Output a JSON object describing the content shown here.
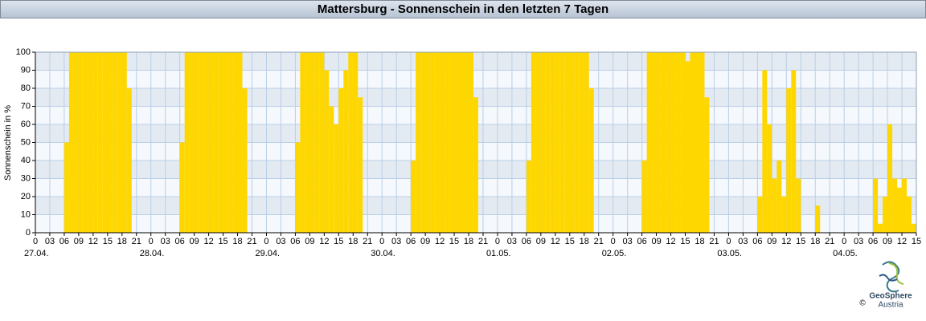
{
  "chart_data": {
    "type": "bar",
    "title": "Mattersburg - Sonnenschein in den letzten 7 Tagen",
    "ylabel": "Sonnenschein in %",
    "color": "#ffd700",
    "grid": true,
    "ylim": [
      0,
      100
    ],
    "yticks": [
      0,
      10,
      20,
      30,
      40,
      50,
      60,
      70,
      80,
      90,
      100
    ],
    "xlim": [
      0,
      183
    ],
    "xticks": [
      0,
      {
        "value": 3,
        "label": "03"
      },
      {
        "value": 6,
        "label": "06"
      },
      {
        "value": 9,
        "label": "09"
      },
      12,
      15,
      18,
      21,
      {
        "value": 24,
        "label": "0"
      },
      {
        "value": 27,
        "label": "03"
      },
      {
        "value": 30,
        "label": "06"
      },
      {
        "value": 33,
        "label": "09"
      },
      {
        "value": 36,
        "label": "12"
      },
      {
        "value": 39,
        "label": "15"
      },
      {
        "value": 42,
        "label": "18"
      },
      {
        "value": 45,
        "label": "21"
      },
      {
        "value": 48,
        "label": "0"
      },
      {
        "value": 51,
        "label": "03"
      },
      {
        "value": 54,
        "label": "06"
      },
      {
        "value": 57,
        "label": "09"
      },
      {
        "value": 60,
        "label": "12"
      },
      {
        "value": 63,
        "label": "15"
      },
      {
        "value": 66,
        "label": "18"
      },
      {
        "value": 69,
        "label": "21"
      },
      {
        "value": 72,
        "label": "0"
      },
      {
        "value": 75,
        "label": "03"
      },
      {
        "value": 78,
        "label": "06"
      },
      {
        "value": 81,
        "label": "09"
      },
      {
        "value": 84,
        "label": "12"
      },
      {
        "value": 87,
        "label": "15"
      },
      {
        "value": 90,
        "label": "18"
      },
      {
        "value": 93,
        "label": "21"
      },
      {
        "value": 96,
        "label": "0"
      },
      {
        "value": 99,
        "label": "03"
      },
      {
        "value": 102,
        "label": "06"
      },
      {
        "value": 105,
        "label": "09"
      },
      {
        "value": 108,
        "label": "12"
      },
      {
        "value": 111,
        "label": "15"
      },
      {
        "value": 114,
        "label": "18"
      },
      {
        "value": 117,
        "label": "21"
      },
      {
        "value": 120,
        "label": "0"
      },
      {
        "value": 123,
        "label": "03"
      },
      {
        "value": 126,
        "label": "06"
      },
      {
        "value": 129,
        "label": "09"
      },
      {
        "value": 132,
        "label": "12"
      },
      {
        "value": 135,
        "label": "15"
      },
      {
        "value": 138,
        "label": "18"
      },
      {
        "value": 141,
        "label": "21"
      },
      {
        "value": 144,
        "label": "0"
      },
      {
        "value": 147,
        "label": "03"
      },
      {
        "value": 150,
        "label": "06"
      },
      {
        "value": 153,
        "label": "09"
      },
      {
        "value": 156,
        "label": "12"
      },
      {
        "value": 159,
        "label": "15"
      },
      {
        "value": 162,
        "label": "18"
      },
      {
        "value": 165,
        "label": "21"
      },
      {
        "value": 168,
        "label": "0"
      },
      {
        "value": 171,
        "label": "03"
      },
      {
        "value": 174,
        "label": "06"
      },
      {
        "value": 177,
        "label": "09"
      },
      {
        "value": 180,
        "label": "12"
      },
      {
        "value": 183,
        "label": "15"
      }
    ],
    "date_labels": [
      {
        "value": 0,
        "label": "27.04."
      },
      {
        "value": 24,
        "label": "28.04."
      },
      {
        "value": 48,
        "label": "29.04."
      },
      {
        "value": 72,
        "label": "30.04."
      },
      {
        "value": 96,
        "label": "01.05."
      },
      {
        "value": 120,
        "label": "02.05."
      },
      {
        "value": 144,
        "label": "03.05."
      },
      {
        "value": 168,
        "label": "04.05."
      }
    ],
    "x": [
      0,
      1,
      2,
      3,
      4,
      5,
      6,
      7,
      8,
      9,
      10,
      11,
      12,
      13,
      14,
      15,
      16,
      17,
      18,
      19,
      20,
      21,
      22,
      23,
      24,
      25,
      26,
      27,
      28,
      29,
      30,
      31,
      32,
      33,
      34,
      35,
      36,
      37,
      38,
      39,
      40,
      41,
      42,
      43,
      44,
      45,
      46,
      47,
      48,
      49,
      50,
      51,
      52,
      53,
      54,
      55,
      56,
      57,
      58,
      59,
      60,
      61,
      62,
      63,
      64,
      65,
      66,
      67,
      68,
      69,
      70,
      71,
      72,
      73,
      74,
      75,
      76,
      77,
      78,
      79,
      80,
      81,
      82,
      83,
      84,
      85,
      86,
      87,
      88,
      89,
      90,
      91,
      92,
      93,
      94,
      95,
      96,
      97,
      98,
      99,
      100,
      101,
      102,
      103,
      104,
      105,
      106,
      107,
      108,
      109,
      110,
      111,
      112,
      113,
      114,
      115,
      116,
      117,
      118,
      119,
      120,
      121,
      122,
      123,
      124,
      125,
      126,
      127,
      128,
      129,
      130,
      131,
      132,
      133,
      134,
      135,
      136,
      137,
      138,
      139,
      140,
      141,
      142,
      143,
      144,
      145,
      146,
      147,
      148,
      149,
      150,
      151,
      152,
      153,
      154,
      155,
      156,
      157,
      158,
      159,
      160,
      161,
      162,
      163,
      164,
      165,
      166,
      167,
      168,
      169,
      170,
      171,
      172,
      173,
      174,
      175,
      176,
      177,
      178,
      179,
      180,
      181,
      182
    ],
    "values": [
      0,
      0,
      0,
      0,
      0,
      0,
      50,
      100,
      100,
      100,
      100,
      100,
      100,
      100,
      100,
      100,
      100,
      100,
      100,
      80,
      0,
      0,
      0,
      0,
      0,
      0,
      0,
      0,
      0,
      0,
      50,
      100,
      100,
      100,
      100,
      100,
      100,
      100,
      100,
      100,
      100,
      100,
      100,
      80,
      0,
      0,
      0,
      0,
      0,
      0,
      0,
      0,
      0,
      0,
      50,
      100,
      100,
      100,
      100,
      100,
      90,
      70,
      60,
      80,
      90,
      100,
      100,
      75,
      0,
      0,
      0,
      0,
      0,
      0,
      0,
      0,
      0,
      0,
      40,
      100,
      100,
      100,
      100,
      100,
      100,
      100,
      100,
      100,
      100,
      100,
      100,
      75,
      0,
      0,
      0,
      0,
      0,
      0,
      0,
      0,
      0,
      0,
      40,
      100,
      100,
      100,
      100,
      100,
      100,
      100,
      100,
      100,
      100,
      100,
      100,
      80,
      0,
      0,
      0,
      0,
      0,
      0,
      0,
      0,
      0,
      0,
      40,
      100,
      100,
      100,
      100,
      100,
      100,
      100,
      100,
      95,
      100,
      100,
      100,
      75,
      0,
      0,
      0,
      0,
      0,
      0,
      0,
      0,
      0,
      0,
      20,
      90,
      60,
      30,
      40,
      20,
      80,
      90,
      30,
      0,
      0,
      0,
      15,
      0,
      0,
      0,
      0,
      0,
      0,
      0,
      0,
      0,
      0,
      0,
      30,
      5,
      20,
      60,
      30,
      25,
      30,
      20,
      5
    ]
  },
  "logo": {
    "name": "GeoSphere",
    "sub": "Austria",
    "copyright": "©"
  }
}
